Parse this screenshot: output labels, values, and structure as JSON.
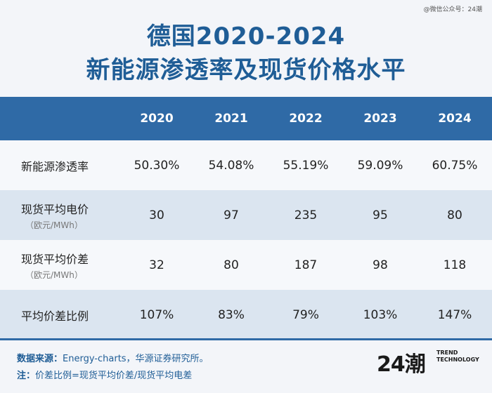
{
  "watermark": "@微信公众号：24潮",
  "title": {
    "line1": "德国2020-2024",
    "line2": "新能源渗透率及现货价格水平"
  },
  "chart_data": {
    "type": "table",
    "columns": [
      "2020",
      "2021",
      "2022",
      "2023",
      "2024"
    ],
    "rows": [
      {
        "label": "新能源渗透率",
        "unit": "",
        "values": [
          "50.30%",
          "54.08%",
          "55.19%",
          "59.09%",
          "60.75%"
        ]
      },
      {
        "label": "现货平均电价",
        "unit": "（欧元/MWh）",
        "values": [
          "30",
          "97",
          "235",
          "95",
          "80"
        ]
      },
      {
        "label": "现货平均价差",
        "unit": "（欧元/MWh）",
        "values": [
          "32",
          "80",
          "187",
          "98",
          "118"
        ]
      },
      {
        "label": "平均价差比例",
        "unit": "",
        "values": [
          "107%",
          "83%",
          "79%",
          "103%",
          "147%"
        ]
      }
    ]
  },
  "footer": {
    "source_label": "数据来源：",
    "source_text": "Energy-charts，华源证券研究所。",
    "note_label": "注：",
    "note_text": "价差比例=现货平均价差/现货平均电差"
  },
  "logo": {
    "mark": "24潮",
    "line1": "TREND",
    "line2": "TECHNOLOGY"
  }
}
